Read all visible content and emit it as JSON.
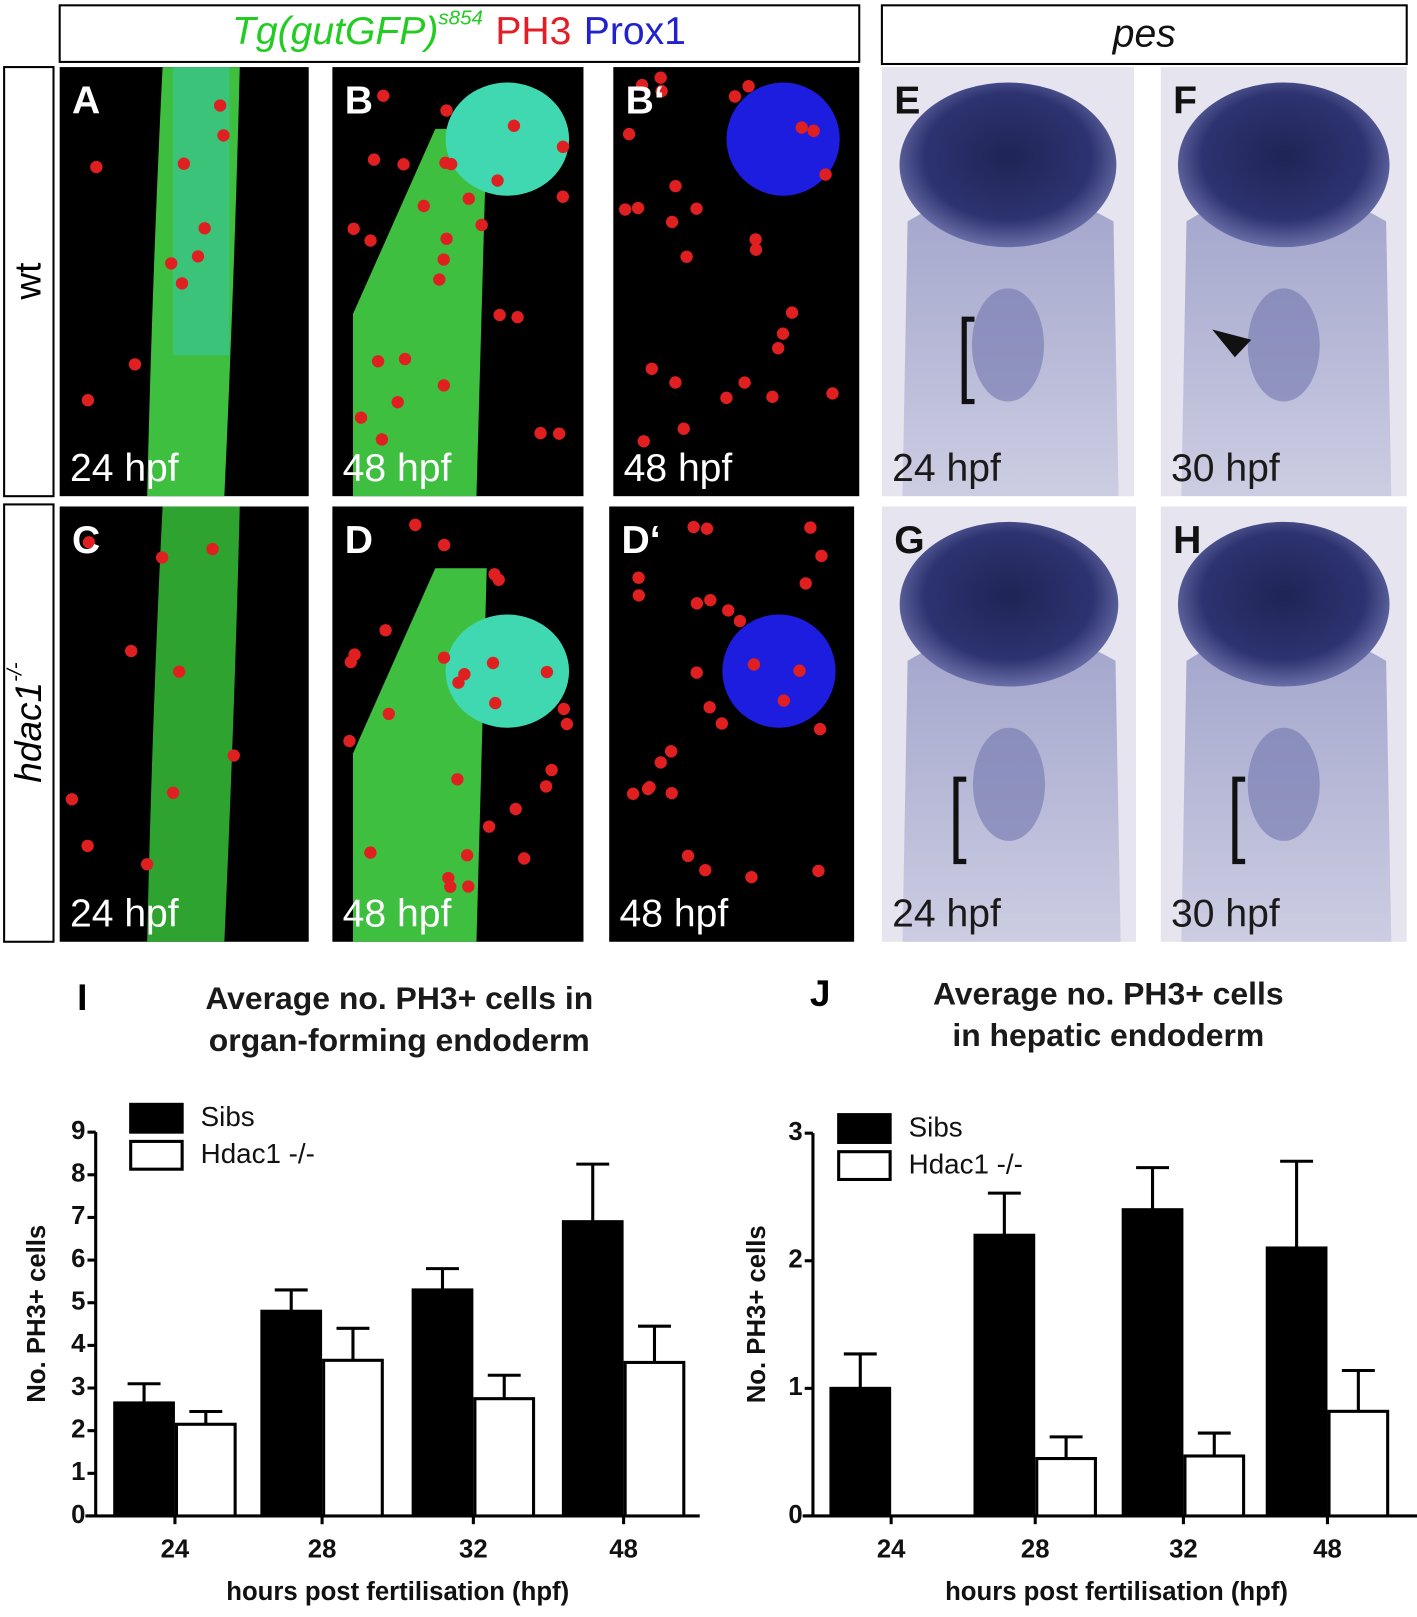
{
  "header": {
    "left": {
      "marker": "Tg(gutGFP)",
      "marker_sup": "s854",
      "stain2": "PH3",
      "stain3": "Prox1"
    },
    "right": "pes"
  },
  "rows": {
    "wt": "wt",
    "mutant": "hdac1",
    "mutant_sup": "-/-"
  },
  "panels": [
    {
      "letter": "A",
      "time": "24 hpf"
    },
    {
      "letter": "B",
      "time": "48 hpf"
    },
    {
      "letter": "B‘",
      "time": "48 hpf"
    },
    {
      "letter": "E",
      "time": "24 hpf"
    },
    {
      "letter": "F",
      "time": "30 hpf"
    },
    {
      "letter": "C",
      "time": "24 hpf"
    },
    {
      "letter": "D",
      "time": "48 hpf"
    },
    {
      "letter": "D‘",
      "time": "48 hpf"
    },
    {
      "letter": "G",
      "time": "24 hpf"
    },
    {
      "letter": "H",
      "time": "30 hpf"
    }
  ],
  "chart_data": [
    {
      "type": "bar",
      "letter": "I",
      "title": [
        "Average no. PH3+ cells in",
        "organ-forming endoderm"
      ],
      "xlabel": "hours post fertilisation (hpf)",
      "ylabel": "No. PH3+ cells",
      "categories": [
        "24",
        "28",
        "32",
        "48"
      ],
      "ylim": [
        0,
        9
      ],
      "yticks": [
        0,
        1,
        2,
        3,
        4,
        5,
        6,
        7,
        8,
        9
      ],
      "series": [
        {
          "name": "Sibs",
          "color": "#000000",
          "values": [
            2.65,
            4.8,
            5.3,
            6.9
          ],
          "errors": [
            0.45,
            0.5,
            0.5,
            1.35
          ]
        },
        {
          "name": "Hdac1 -/-",
          "color": "#ffffff",
          "values": [
            2.15,
            3.65,
            2.75,
            3.6
          ],
          "errors": [
            0.3,
            0.75,
            0.55,
            0.85
          ]
        }
      ]
    },
    {
      "type": "bar",
      "letter": "J",
      "title": [
        "Average no. PH3+ cells",
        "in hepatic endoderm"
      ],
      "xlabel": "hours post fertilisation (hpf)",
      "ylabel": "No. PH3+ cells",
      "categories": [
        "24",
        "28",
        "32",
        "48"
      ],
      "ylim": [
        0,
        3
      ],
      "yticks": [
        0,
        1,
        2,
        3
      ],
      "series": [
        {
          "name": "Sibs",
          "color": "#000000",
          "values": [
            1.0,
            2.2,
            2.4,
            2.1
          ],
          "errors": [
            0.27,
            0.33,
            0.33,
            0.68
          ]
        },
        {
          "name": "Hdac1 -/-",
          "color": "#ffffff",
          "values": [
            0,
            0.45,
            0.47,
            0.82
          ],
          "errors": [
            0,
            0.17,
            0.18,
            0.32
          ]
        }
      ]
    }
  ]
}
